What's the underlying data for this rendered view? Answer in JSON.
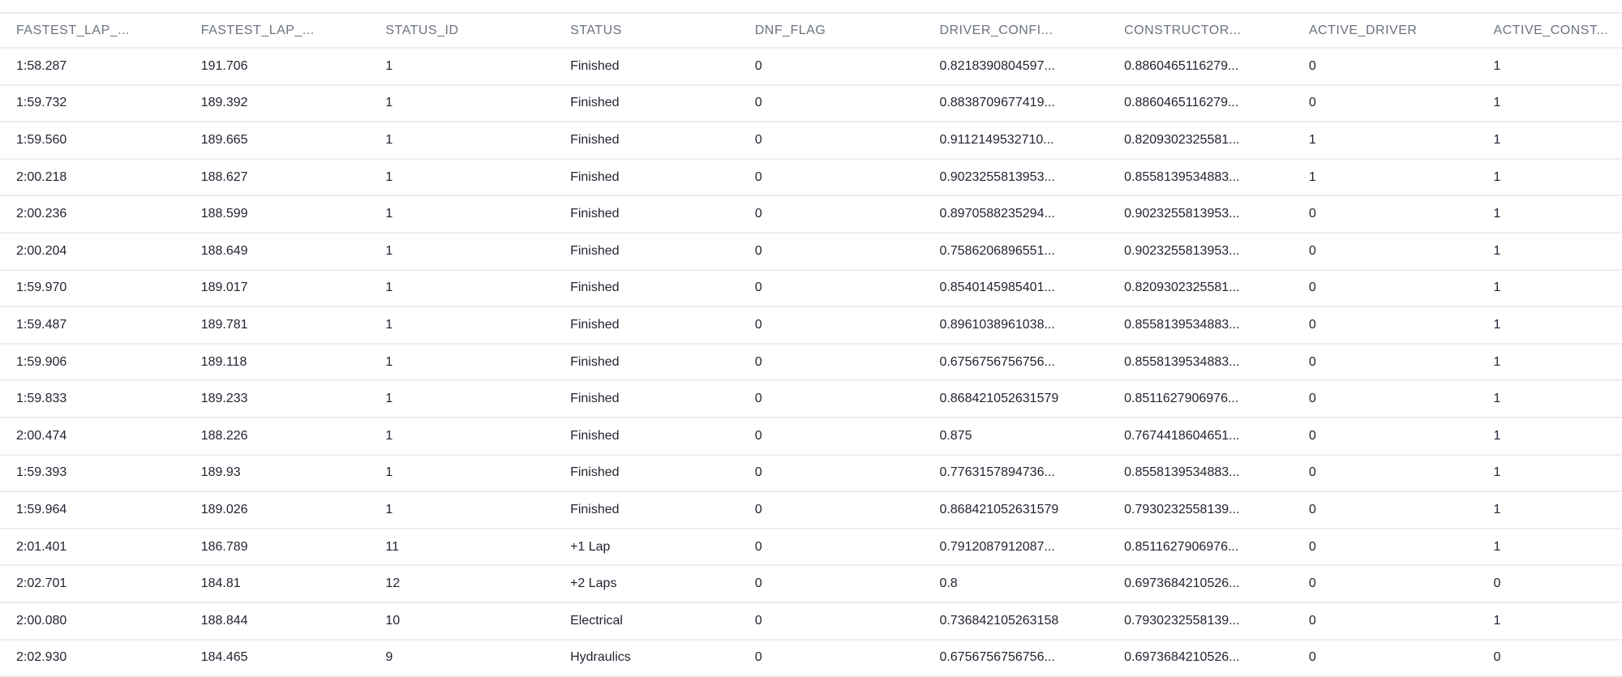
{
  "table": {
    "columns": [
      "FASTEST_LAP_...",
      "FASTEST_LAP_...",
      "STATUS_ID",
      "STATUS",
      "DNF_FLAG",
      "DRIVER_CONFI...",
      "CONSTRUCTOR...",
      "ACTIVE_DRIVER",
      "ACTIVE_CONST..."
    ],
    "rows": [
      [
        "1:58.287",
        "191.706",
        "1",
        "Finished",
        "0",
        "0.8218390804597...",
        "0.8860465116279...",
        "0",
        "1"
      ],
      [
        "1:59.732",
        "189.392",
        "1",
        "Finished",
        "0",
        "0.8838709677419...",
        "0.8860465116279...",
        "0",
        "1"
      ],
      [
        "1:59.560",
        "189.665",
        "1",
        "Finished",
        "0",
        "0.9112149532710...",
        "0.8209302325581...",
        "1",
        "1"
      ],
      [
        "2:00.218",
        "188.627",
        "1",
        "Finished",
        "0",
        "0.9023255813953...",
        "0.8558139534883...",
        "1",
        "1"
      ],
      [
        "2:00.236",
        "188.599",
        "1",
        "Finished",
        "0",
        "0.8970588235294...",
        "0.9023255813953...",
        "0",
        "1"
      ],
      [
        "2:00.204",
        "188.649",
        "1",
        "Finished",
        "0",
        "0.7586206896551...",
        "0.9023255813953...",
        "0",
        "1"
      ],
      [
        "1:59.970",
        "189.017",
        "1",
        "Finished",
        "0",
        "0.8540145985401...",
        "0.8209302325581...",
        "0",
        "1"
      ],
      [
        "1:59.487",
        "189.781",
        "1",
        "Finished",
        "0",
        "0.8961038961038...",
        "0.8558139534883...",
        "0",
        "1"
      ],
      [
        "1:59.906",
        "189.118",
        "1",
        "Finished",
        "0",
        "0.6756756756756...",
        "0.8558139534883...",
        "0",
        "1"
      ],
      [
        "1:59.833",
        "189.233",
        "1",
        "Finished",
        "0",
        "0.868421052631579",
        "0.8511627906976...",
        "0",
        "1"
      ],
      [
        "2:00.474",
        "188.226",
        "1",
        "Finished",
        "0",
        "0.875",
        "0.7674418604651...",
        "0",
        "1"
      ],
      [
        "1:59.393",
        "189.93",
        "1",
        "Finished",
        "0",
        "0.7763157894736...",
        "0.8558139534883...",
        "0",
        "1"
      ],
      [
        "1:59.964",
        "189.026",
        "1",
        "Finished",
        "0",
        "0.868421052631579",
        "0.7930232558139...",
        "0",
        "1"
      ],
      [
        "2:01.401",
        "186.789",
        "11",
        "+1 Lap",
        "0",
        "0.7912087912087...",
        "0.8511627906976...",
        "0",
        "1"
      ],
      [
        "2:02.701",
        "184.81",
        "12",
        "+2 Laps",
        "0",
        "0.8",
        "0.6973684210526...",
        "0",
        "0"
      ],
      [
        "2:00.080",
        "188.844",
        "10",
        "Electrical",
        "0",
        "0.736842105263158",
        "0.7930232558139...",
        "0",
        "1"
      ],
      [
        "2:02.930",
        "184.465",
        "9",
        "Hydraulics",
        "0",
        "0.6756756756756...",
        "0.6973684210526...",
        "0",
        "0"
      ]
    ]
  }
}
